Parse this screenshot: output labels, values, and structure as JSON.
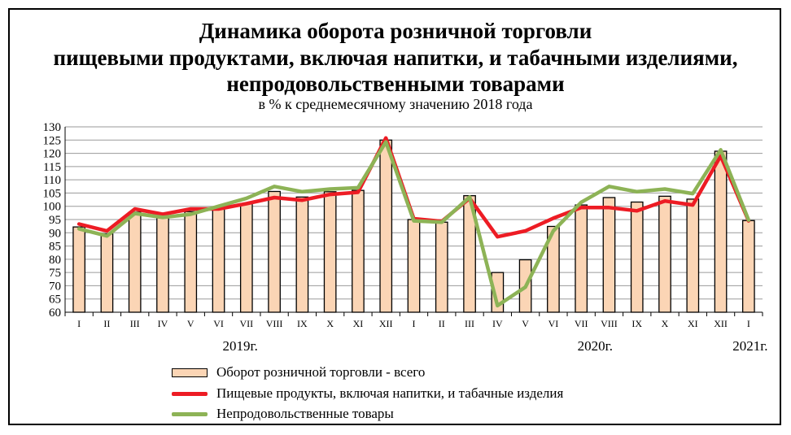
{
  "colors": {
    "bar_fill": "#fbd5b5",
    "bar_stroke": "#000000",
    "food_line": "#ed1c24",
    "nonfood_line": "#8db356",
    "grid": "#9a9a9a"
  },
  "chart_data": {
    "type": "bar",
    "title_lines": [
      "Динамика оборота розничной торговли",
      "пищевыми продуктами, включая напитки, и табачными изделиями,",
      "непродовольственными товарами"
    ],
    "subtitle": "в % к среднемесячному значению 2018 года",
    "categories": [
      "I",
      "II",
      "III",
      "IV",
      "V",
      "VI",
      "VII",
      "VIII",
      "IX",
      "X",
      "XI",
      "XII",
      "I",
      "II",
      "III",
      "IV",
      "V",
      "VI",
      "VII",
      "VIII",
      "IX",
      "X",
      "XI",
      "XII",
      "I"
    ],
    "year_labels": [
      "2019г.",
      "2020г.",
      "2021г."
    ],
    "ylim": [
      60,
      130
    ],
    "yticks": [
      60,
      65,
      70,
      75,
      80,
      85,
      90,
      95,
      100,
      105,
      110,
      115,
      120,
      125,
      130
    ],
    "grid": true,
    "legend_position": "bottom",
    "series": [
      {
        "name": "Оборот розничной торговли - всего",
        "kind": "bar",
        "values": [
          92.2,
          89.6,
          97.8,
          96.3,
          98.0,
          99.5,
          101.0,
          105.6,
          103.5,
          105.5,
          106.0,
          125.0,
          95.0,
          94.0,
          104.0,
          75.0,
          79.8,
          92.4,
          100.5,
          103.3,
          101.6,
          103.8,
          102.7,
          120.8,
          94.6
        ]
      },
      {
        "name": "Пищевые продукты, включая напитки, и табачные изделия",
        "kind": "line",
        "values": [
          93.3,
          90.7,
          99.0,
          97.0,
          99.0,
          99.0,
          101.0,
          103.3,
          102.3,
          104.5,
          105.3,
          125.8,
          95.3,
          94.3,
          103.0,
          88.5,
          90.7,
          95.5,
          99.5,
          99.5,
          98.3,
          102.0,
          100.5,
          119.0,
          94.5
        ]
      },
      {
        "name": "Непродовольственные товары",
        "kind": "line",
        "values": [
          91.5,
          88.8,
          97.3,
          95.8,
          97.0,
          100.0,
          103.0,
          107.5,
          105.5,
          106.5,
          107.0,
          124.3,
          94.5,
          94.0,
          103.5,
          62.5,
          69.5,
          90.7,
          101.5,
          107.5,
          105.5,
          106.5,
          104.8,
          121.3,
          94.8
        ]
      }
    ]
  }
}
